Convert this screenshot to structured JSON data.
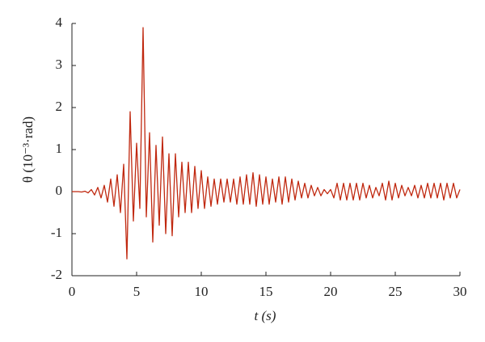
{
  "chart_data": {
    "type": "line",
    "xlabel": "t (s)",
    "ylabel": "θ (10⁻³·rad)",
    "xlim": [
      0,
      30
    ],
    "ylim": [
      -2,
      4
    ],
    "xticks": [
      0,
      5,
      10,
      15,
      20,
      25,
      30
    ],
    "yticks": [
      -2,
      -1,
      0,
      1,
      2,
      3,
      4
    ],
    "x": [
      0,
      0.25,
      0.5,
      0.75,
      1,
      1.25,
      1.5,
      1.75,
      2,
      2.25,
      2.5,
      2.75,
      3,
      3.25,
      3.5,
      3.75,
      4,
      4.25,
      4.5,
      4.75,
      5,
      5.25,
      5.5,
      5.75,
      6,
      6.25,
      6.5,
      6.75,
      7,
      7.25,
      7.5,
      7.75,
      8,
      8.25,
      8.5,
      8.75,
      9,
      9.25,
      9.5,
      9.75,
      10,
      10.25,
      10.5,
      10.75,
      11,
      11.25,
      11.5,
      11.75,
      12,
      12.25,
      12.5,
      12.75,
      13,
      13.25,
      13.5,
      13.75,
      14,
      14.25,
      14.5,
      14.75,
      15,
      15.25,
      15.5,
      15.75,
      16,
      16.25,
      16.5,
      16.75,
      17,
      17.25,
      17.5,
      17.75,
      18,
      18.25,
      18.5,
      18.75,
      19,
      19.25,
      19.5,
      19.75,
      20,
      20.25,
      20.5,
      20.75,
      21,
      21.25,
      21.5,
      21.75,
      22,
      22.25,
      22.5,
      22.75,
      23,
      23.25,
      23.5,
      23.75,
      24,
      24.25,
      24.5,
      24.75,
      25,
      25.25,
      25.5,
      25.75,
      26,
      26.25,
      26.5,
      26.75,
      27,
      27.25,
      27.5,
      27.75,
      28,
      28.25,
      28.5,
      28.75,
      29,
      29.25,
      29.5,
      29.75,
      30
    ],
    "series": [
      {
        "name": "θ",
        "color": "#c0280f",
        "values": [
          0,
          0,
          0,
          -0.01,
          0.01,
          -0.03,
          0.05,
          -0.08,
          0.1,
          -0.15,
          0.15,
          -0.25,
          0.3,
          -0.35,
          0.4,
          -0.5,
          0.65,
          -1.6,
          1.9,
          -0.7,
          1.15,
          -0.4,
          3.9,
          -0.6,
          1.4,
          -1.2,
          1.1,
          -0.8,
          1.3,
          -1.0,
          0.9,
          -1.05,
          0.9,
          -0.6,
          0.7,
          -0.5,
          0.7,
          -0.5,
          0.6,
          -0.4,
          0.5,
          -0.4,
          0.35,
          -0.35,
          0.3,
          -0.3,
          0.3,
          -0.25,
          0.3,
          -0.25,
          0.3,
          -0.3,
          0.35,
          -0.3,
          0.4,
          -0.3,
          0.45,
          -0.35,
          0.4,
          -0.3,
          0.35,
          -0.3,
          0.3,
          -0.25,
          0.35,
          -0.3,
          0.35,
          -0.25,
          0.3,
          -0.2,
          0.25,
          -0.15,
          0.2,
          -0.15,
          0.15,
          -0.1,
          0.1,
          -0.1,
          0.05,
          -0.05,
          0.05,
          -0.15,
          0.2,
          -0.2,
          0.2,
          -0.2,
          0.2,
          -0.2,
          0.2,
          -0.2,
          0.2,
          -0.15,
          0.15,
          -0.15,
          0.1,
          -0.1,
          0.2,
          -0.2,
          0.25,
          -0.2,
          0.2,
          -0.15,
          0.15,
          -0.1,
          0.1,
          -0.1,
          0.15,
          -0.15,
          0.15,
          -0.15,
          0.2,
          -0.15,
          0.2,
          -0.15,
          0.2,
          -0.2,
          0.2,
          -0.15,
          0.2,
          -0.15,
          0.05
        ]
      }
    ]
  }
}
